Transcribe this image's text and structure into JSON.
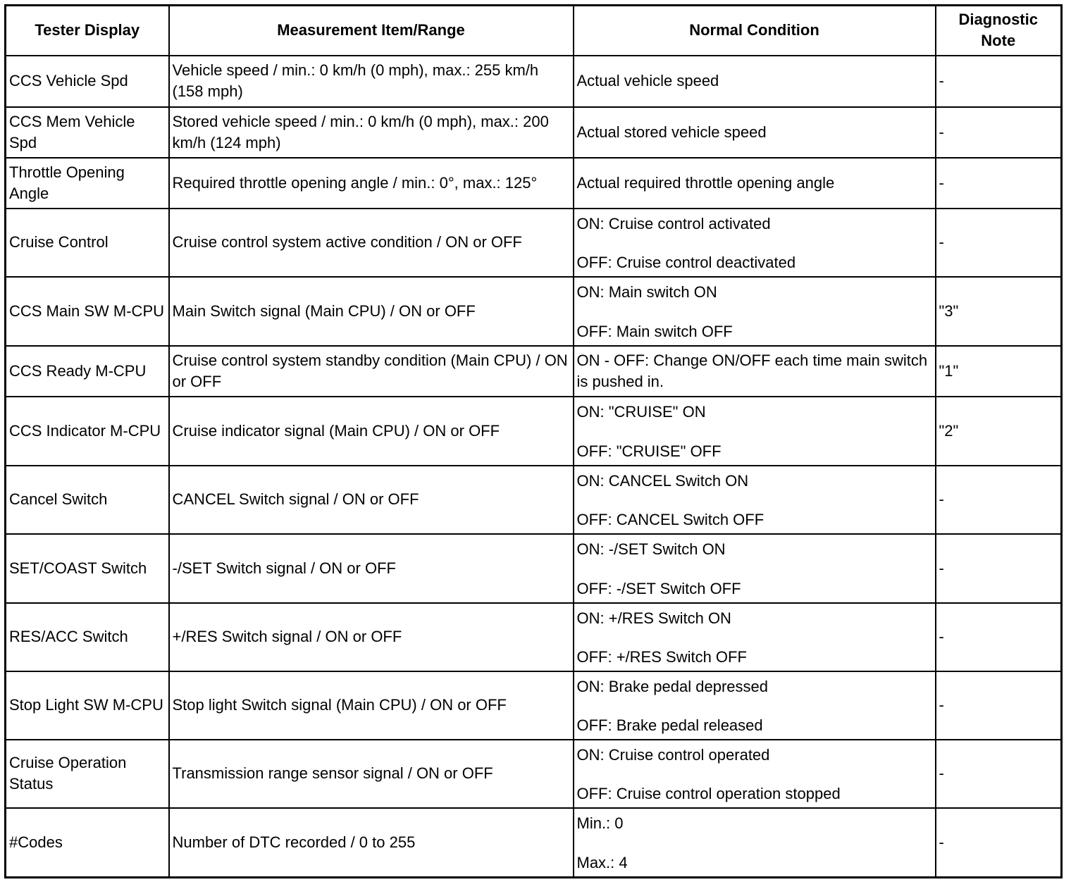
{
  "headers": [
    "Tester Display",
    "Measurement Item/Range",
    "Normal Condition",
    "Diagnostic Note"
  ],
  "rows": [
    {
      "display": "CCS Vehicle Spd",
      "measurement": "Vehicle speed / min.: 0 km/h (0 mph), max.: 255 km/h (158 mph)",
      "normal": [
        "Actual vehicle speed"
      ],
      "note": "-"
    },
    {
      "display": "CCS Mem Vehicle Spd",
      "measurement": "Stored vehicle speed / min.: 0 km/h (0 mph), max.: 200 km/h (124 mph)",
      "normal": [
        "Actual stored vehicle speed"
      ],
      "note": "-"
    },
    {
      "display": "Throttle Opening Angle",
      "measurement": "Required throttle opening angle / min.: 0°, max.: 125°",
      "normal": [
        "Actual required throttle opening angle"
      ],
      "note": "-"
    },
    {
      "display": "Cruise Control",
      "measurement": "Cruise control system active condition / ON or OFF",
      "normal": [
        "ON: Cruise control activated",
        "OFF: Cruise control deactivated"
      ],
      "note": "-"
    },
    {
      "display": "CCS Main SW M-CPU",
      "measurement": "Main Switch signal (Main CPU) / ON or OFF",
      "normal": [
        "ON: Main switch ON",
        "OFF: Main switch OFF"
      ],
      "note": "\"3\""
    },
    {
      "display": "CCS Ready M-CPU",
      "measurement": "Cruise control system standby condition (Main CPU) / ON or OFF",
      "normal": [
        "ON - OFF: Change ON/OFF each time main switch is pushed in."
      ],
      "note": "\"1\""
    },
    {
      "display": "CCS Indicator M-CPU",
      "measurement": "Cruise indicator signal (Main CPU) / ON or OFF",
      "normal": [
        "ON: \"CRUISE\" ON",
        "OFF: \"CRUISE\" OFF"
      ],
      "note": "\"2\""
    },
    {
      "display": "Cancel Switch",
      "measurement": "CANCEL Switch signal / ON or OFF",
      "normal": [
        "ON: CANCEL Switch ON",
        "OFF: CANCEL Switch OFF"
      ],
      "note": "-"
    },
    {
      "display": "SET/COAST Switch",
      "measurement": "-/SET Switch signal / ON or OFF",
      "normal": [
        "ON: -/SET Switch ON",
        "OFF: -/SET Switch OFF"
      ],
      "note": "-"
    },
    {
      "display": "RES/ACC Switch",
      "measurement": "+/RES Switch signal / ON or OFF",
      "normal": [
        "ON: +/RES Switch ON",
        "OFF: +/RES Switch OFF"
      ],
      "note": "-"
    },
    {
      "display": "Stop Light SW M-CPU",
      "measurement": "Stop light Switch signal (Main CPU) / ON or OFF",
      "normal": [
        "ON: Brake pedal depressed",
        "OFF: Brake pedal released"
      ],
      "note": "-"
    },
    {
      "display": "Cruise Operation Status",
      "measurement": "Transmission range sensor signal / ON or OFF",
      "normal": [
        "ON: Cruise control operated",
        "OFF: Cruise control operation stopped"
      ],
      "note": "-"
    },
    {
      "display": "#Codes",
      "measurement": "Number of DTC recorded / 0 to 255",
      "normal": [
        "Min.: 0",
        "Max.: 4"
      ],
      "note": "-"
    }
  ]
}
